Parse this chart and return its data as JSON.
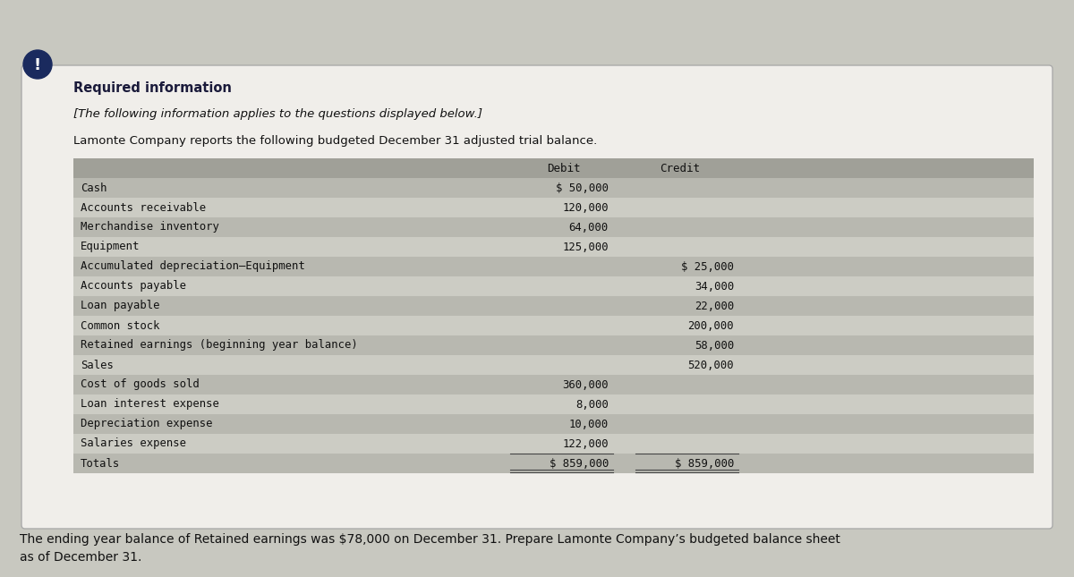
{
  "required_info_title": "Required information",
  "italic_subtitle": "[The following information applies to the questions displayed below.]",
  "intro_text": "Lamonte Company reports the following budgeted December 31 adjusted trial balance.",
  "col_headers": [
    "Debit",
    "Credit"
  ],
  "table_rows": [
    {
      "label": "Cash",
      "debit": "$ 50,000",
      "credit": ""
    },
    {
      "label": "Accounts receivable",
      "debit": "120,000",
      "credit": ""
    },
    {
      "label": "Merchandise inventory",
      "debit": "64,000",
      "credit": ""
    },
    {
      "label": "Equipment",
      "debit": "125,000",
      "credit": ""
    },
    {
      "label": "Accumulated depreciation–Equipment",
      "debit": "",
      "credit": "$ 25,000"
    },
    {
      "label": "Accounts payable",
      "debit": "",
      "credit": "34,000"
    },
    {
      "label": "Loan payable",
      "debit": "",
      "credit": "22,000"
    },
    {
      "label": "Common stock",
      "debit": "",
      "credit": "200,000"
    },
    {
      "label": "Retained earnings (beginning year balance)",
      "debit": "",
      "credit": "58,000"
    },
    {
      "label": "Sales",
      "debit": "",
      "credit": "520,000"
    },
    {
      "label": "Cost of goods sold",
      "debit": "360,000",
      "credit": ""
    },
    {
      "label": "Loan interest expense",
      "debit": "8,000",
      "credit": ""
    },
    {
      "label": "Depreciation expense",
      "debit": "10,000",
      "credit": ""
    },
    {
      "label": "Salaries expense",
      "debit": "122,000",
      "credit": ""
    },
    {
      "label": "Totals",
      "debit": "$ 859,000",
      "credit": "$ 859,000"
    }
  ],
  "footer_text": "The ending year balance of Retained earnings was $78,000 on December 31. Prepare Lamonte Company’s budgeted balance sheet as of December 31.",
  "footer_line2": "as of December 31.",
  "bg_color": "#c8c8c0",
  "box_bg": "#f0eeea",
  "table_header_bg": "#a0a098",
  "table_row_bg_dark": "#b8b8b0",
  "table_row_bg_light": "#ccccc4",
  "warning_color": "#1a2a5e",
  "border_color": "#999990",
  "text_color": "#111111",
  "mono_font": "monospace",
  "sans_font": "sans-serif"
}
